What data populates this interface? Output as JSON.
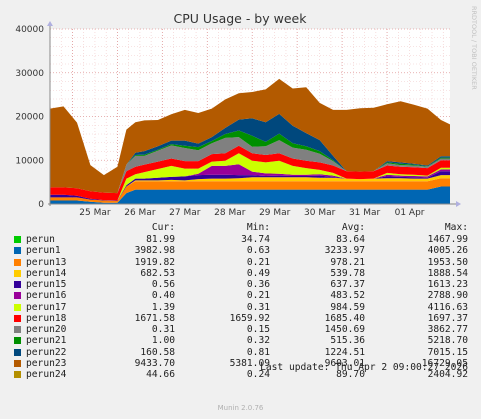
{
  "chart_data": {
    "type": "area",
    "title": "CPU Usage - by week",
    "side_label": "RRDTOOL / TOBI OETIKER",
    "stacked": true,
    "ylim": [
      0,
      40000
    ],
    "yticks": [
      0,
      10000,
      20000,
      30000,
      40000
    ],
    "x_labels": [
      "25 Mar",
      "26 Mar",
      "27 Mar",
      "28 Mar",
      "29 Mar",
      "30 Mar",
      "31 Mar",
      "01 Apr"
    ],
    "x_start": "24 Mar 12:00",
    "x_end": "02 Apr 09:00",
    "grid": true,
    "x": [
      0,
      0.3,
      0.6,
      0.9,
      1.2,
      1.5,
      1.7,
      1.9,
      2.1,
      2.4,
      2.7,
      3.0,
      3.3,
      3.6,
      3.9,
      4.2,
      4.5,
      4.8,
      5.1,
      5.4,
      5.7,
      6.0,
      6.3,
      6.6,
      6.9,
      7.2,
      7.5,
      7.8,
      8.1,
      8.4,
      8.7,
      8.9
    ],
    "series": [
      {
        "name": "perun",
        "color": "#00cc00",
        "values": [
          0,
          0,
          0,
          0,
          0,
          0,
          0,
          0,
          0,
          0,
          0,
          0,
          0,
          0,
          0,
          0,
          0,
          0,
          0,
          0,
          0,
          0,
          0,
          0,
          0,
          0,
          0,
          0,
          0,
          0,
          0,
          0
        ]
      },
      {
        "name": "perun1",
        "color": "#0066b3",
        "values": [
          800,
          800,
          800,
          500,
          300,
          300,
          2500,
          3300,
          3300,
          3300,
          3300,
          3300,
          3300,
          3300,
          3300,
          3300,
          3300,
          3300,
          3300,
          3300,
          3300,
          3300,
          3300,
          3300,
          3300,
          3300,
          3300,
          3300,
          3300,
          3300,
          4000,
          4000
        ]
      },
      {
        "name": "perun13",
        "color": "#ff8000",
        "values": [
          700,
          700,
          700,
          500,
          500,
          400,
          1500,
          1900,
          1900,
          1900,
          1900,
          1900,
          1900,
          1900,
          1900,
          1900,
          1900,
          1900,
          1900,
          1900,
          1900,
          1900,
          1900,
          1900,
          1900,
          1900,
          1900,
          1900,
          1900,
          1900,
          1900,
          1900
        ]
      },
      {
        "name": "perun14",
        "color": "#ffcc00",
        "values": [
          0,
          0,
          0,
          0,
          0,
          0,
          0,
          200,
          200,
          200,
          300,
          200,
          500,
          600,
          600,
          700,
          900,
          900,
          900,
          900,
          900,
          800,
          800,
          600,
          500,
          600,
          700,
          700,
          600,
          600,
          700,
          700
        ]
      },
      {
        "name": "perun15",
        "color": "#330099",
        "values": [
          600,
          600,
          400,
          200,
          100,
          100,
          300,
          400,
          400,
          600,
          700,
          900,
          900,
          900,
          900,
          700,
          500,
          300,
          400,
          300,
          300,
          500,
          200,
          0,
          0,
          0,
          400,
          300,
          300,
          200,
          900,
          900
        ]
      },
      {
        "name": "perun16",
        "color": "#990099",
        "values": [
          0,
          0,
          0,
          0,
          0,
          0,
          0,
          0,
          0,
          0,
          0,
          0,
          300,
          2000,
          2000,
          2500,
          800,
          600,
          400,
          300,
          300,
          300,
          300,
          0,
          0,
          0,
          400,
          300,
          300,
          300,
          400,
          400
        ]
      },
      {
        "name": "perun17",
        "color": "#ccff00",
        "values": [
          0,
          0,
          0,
          0,
          0,
          0,
          1500,
          1000,
          1500,
          2000,
          2500,
          1800,
          1200,
          1000,
          1200,
          2500,
          2500,
          2500,
          3000,
          2000,
          1500,
          1000,
          600,
          0,
          0,
          0,
          400,
          300,
          300,
          200,
          400,
          400
        ]
      },
      {
        "name": "perun18",
        "color": "#ff0000",
        "values": [
          1700,
          1700,
          1700,
          1700,
          1700,
          1700,
          1700,
          1700,
          1700,
          1700,
          1700,
          1700,
          1700,
          1700,
          1700,
          1700,
          1700,
          1700,
          1700,
          1700,
          1700,
          1700,
          1700,
          1700,
          1700,
          1700,
          1700,
          1700,
          1700,
          1700,
          1700,
          1700
        ]
      },
      {
        "name": "perun20",
        "color": "#808080",
        "values": [
          0,
          0,
          0,
          0,
          0,
          0,
          1500,
          2500,
          2000,
          2500,
          3000,
          3000,
          2500,
          2500,
          3500,
          2000,
          1500,
          2000,
          3000,
          2500,
          2500,
          2000,
          1000,
          0,
          0,
          0,
          500,
          400,
          400,
          300,
          400,
          400
        ]
      },
      {
        "name": "perun21",
        "color": "#008f00",
        "values": [
          0,
          0,
          0,
          0,
          0,
          0,
          0,
          200,
          300,
          200,
          300,
          500,
          700,
          500,
          900,
          1500,
          2500,
          1000,
          1500,
          1000,
          800,
          600,
          200,
          0,
          0,
          0,
          200,
          300,
          200,
          100,
          200,
          200
        ]
      },
      {
        "name": "perun22",
        "color": "#00487d",
        "values": [
          0,
          0,
          0,
          0,
          0,
          0,
          0,
          500,
          800,
          800,
          800,
          1200,
          800,
          900,
          1400,
          2500,
          4000,
          4500,
          4500,
          4000,
          3000,
          2500,
          1000,
          0,
          0,
          0,
          300,
          300,
          200,
          200,
          300,
          300
        ]
      },
      {
        "name": "perun23",
        "color": "#b35a00",
        "values": [
          18000,
          18500,
          15000,
          6000,
          4000,
          6000,
          8000,
          7000,
          7000,
          6000,
          6000,
          7000,
          7000,
          6500,
          6500,
          6000,
          6000,
          7500,
          8000,
          8500,
          10500,
          8500,
          10500,
          14000,
          14500,
          14500,
          13000,
          14000,
          13500,
          13000,
          8300,
          7300
        ]
      },
      {
        "name": "perun24",
        "color": "#b38f00",
        "values": [
          0,
          0,
          0,
          0,
          0,
          0,
          0,
          0,
          0,
          0,
          0,
          0,
          0,
          0,
          0,
          0,
          0,
          0,
          0,
          0,
          0,
          0,
          0,
          0,
          0,
          0,
          0,
          0,
          0,
          0,
          0,
          0
        ]
      }
    ]
  },
  "legend": {
    "headers": {
      "cur": "Cur:",
      "min": "Min:",
      "avg": "Avg:",
      "max": "Max:"
    },
    "rows": [
      {
        "name": "perun",
        "color": "#00cc00",
        "cur": "81.99",
        "min": "34.74",
        "avg": "83.64",
        "max": "1467.99"
      },
      {
        "name": "perun1",
        "color": "#0066b3",
        "cur": "3982.98",
        "min": "0.63",
        "avg": "3233.97",
        "max": "4005.26"
      },
      {
        "name": "perun13",
        "color": "#ff8000",
        "cur": "1919.82",
        "min": "0.21",
        "avg": "978.21",
        "max": "1953.50"
      },
      {
        "name": "perun14",
        "color": "#ffcc00",
        "cur": "682.53",
        "min": "0.49",
        "avg": "539.78",
        "max": "1888.54"
      },
      {
        "name": "perun15",
        "color": "#330099",
        "cur": "0.56",
        "min": "0.36",
        "avg": "637.37",
        "max": "1613.23"
      },
      {
        "name": "perun16",
        "color": "#990099",
        "cur": "0.40",
        "min": "0.21",
        "avg": "483.52",
        "max": "2788.90"
      },
      {
        "name": "perun17",
        "color": "#ccff00",
        "cur": "1.39",
        "min": "0.31",
        "avg": "984.59",
        "max": "4116.63"
      },
      {
        "name": "perun18",
        "color": "#ff0000",
        "cur": "1671.58",
        "min": "1659.92",
        "avg": "1685.40",
        "max": "1697.37"
      },
      {
        "name": "perun20",
        "color": "#808080",
        "cur": "0.31",
        "min": "0.15",
        "avg": "1450.69",
        "max": "3862.77"
      },
      {
        "name": "perun21",
        "color": "#008f00",
        "cur": "1.00",
        "min": "0.32",
        "avg": "515.36",
        "max": "5218.70"
      },
      {
        "name": "perun22",
        "color": "#00487d",
        "cur": "160.58",
        "min": "0.81",
        "avg": "1224.51",
        "max": "7015.15"
      },
      {
        "name": "perun23",
        "color": "#b35a00",
        "cur": "9433.70",
        "min": "5381.09",
        "avg": "9603.01",
        "max": "16729.05"
      },
      {
        "name": "perun24",
        "color": "#b38f00",
        "cur": "44.66",
        "min": "0.24",
        "avg": "89.70",
        "max": "2404.92"
      }
    ]
  },
  "last_update": "Last update: Thu Apr  2 09:00:27 2026",
  "footer": "Munin 2.0.76"
}
